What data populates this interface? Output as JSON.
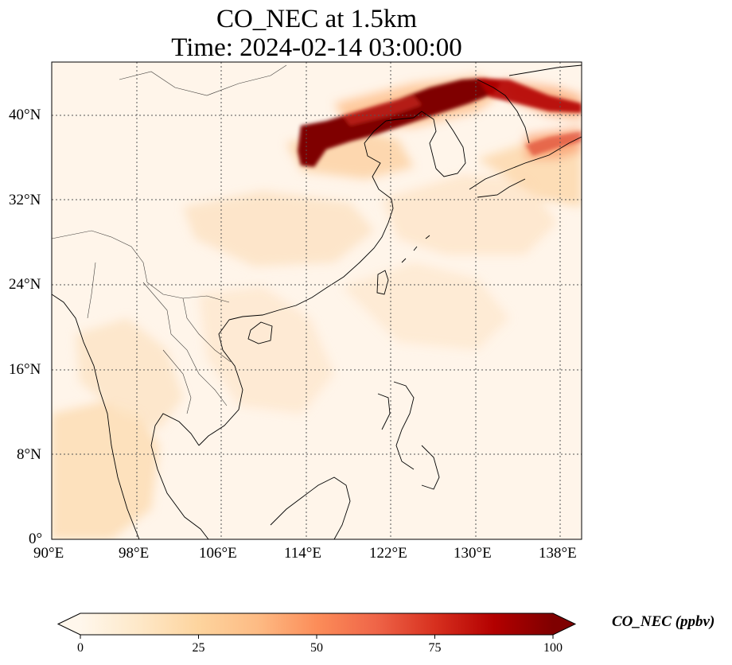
{
  "map": {
    "title_line1": "CO_NEC at 1.5km",
    "title_line2": "Time: 2024-02-14 03:00:00",
    "variable": "CO_NEC",
    "level": "1.5km",
    "time": "2024-02-14 03:00:00",
    "extent": {
      "lon_min": 90,
      "lon_max": 140,
      "lat_min": 0,
      "lat_max": 45
    },
    "lon_ticks": [
      "90°E",
      "98°E",
      "106°E",
      "114°E",
      "122°E",
      "130°E",
      "138°E"
    ],
    "lat_ticks": [
      "0°",
      "8°N",
      "16°N",
      "24°N",
      "32°N",
      "40°N"
    ],
    "gridlines": true,
    "colormap": "OrRd",
    "plume_color": "#7f0000"
  },
  "colorbar": {
    "label": "CO_NEC (ppbv)",
    "ticks": [
      "0",
      "25",
      "50",
      "75",
      "100"
    ],
    "min": 0,
    "max": 100,
    "extend": "both",
    "colors": [
      "#fff7ec",
      "#fee8c8",
      "#fdd49e",
      "#fdbb84",
      "#fc8d59",
      "#ef6548",
      "#d7301f",
      "#b30000",
      "#7f0000"
    ]
  }
}
